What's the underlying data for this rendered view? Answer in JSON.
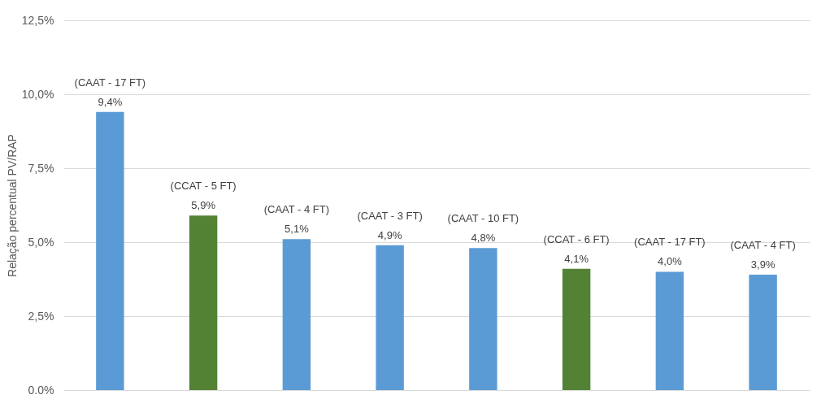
{
  "chart_data": {
    "type": "bar",
    "ylabel": "Relação percentual PV/RAP",
    "categories": [
      null,
      null,
      null,
      null,
      null,
      null,
      null,
      null
    ],
    "values": [
      9.4,
      5.9,
      5.1,
      4.9,
      4.8,
      4.1,
      4.0,
      3.9
    ],
    "colors": [
      "#5b9bd5",
      "#548235",
      "#5b9bd5",
      "#5b9bd5",
      "#5b9bd5",
      "#548235",
      "#5b9bd5",
      "#5b9bd5"
    ],
    "value_labels": [
      "9,4%",
      "5,9%",
      "5,1%",
      "4,9%",
      "4,8%",
      "4,1%",
      "4,0%",
      "3,9%"
    ],
    "annotations": [
      {
        "text": "(CAAT - 17 FT)",
        "y": 9.4
      },
      {
        "text": "(CCAT - 5 FT)",
        "y": 5.9
      },
      {
        "text": "(CAAT - 4 FT)",
        "y": 5.1
      },
      {
        "text": "(CAAT - 3 FT)",
        "y": 4.9
      },
      {
        "text": "(CAAT - 10 FT)",
        "y": 4.8
      },
      {
        "text": "(CCAT - 6 FT)",
        "y": 4.1
      },
      {
        "text": "(CAAT - 17 FT)",
        "y": 4.0
      },
      {
        "text": "(CAAT - 4 FT)",
        "y": 3.9
      }
    ],
    "ylim": [
      0,
      12.5
    ],
    "yticks": [
      {
        "value": 0,
        "label": "0.0%"
      },
      {
        "value": 2.5,
        "label": "2,5%"
      },
      {
        "value": 5,
        "label": "5,0%"
      },
      {
        "value": 7.5,
        "label": "7,5%"
      },
      {
        "value": 10,
        "label": "10,0%"
      },
      {
        "value": 12.5,
        "label": "12,5%"
      }
    ],
    "grid": "y",
    "tick_labels": "y"
  }
}
